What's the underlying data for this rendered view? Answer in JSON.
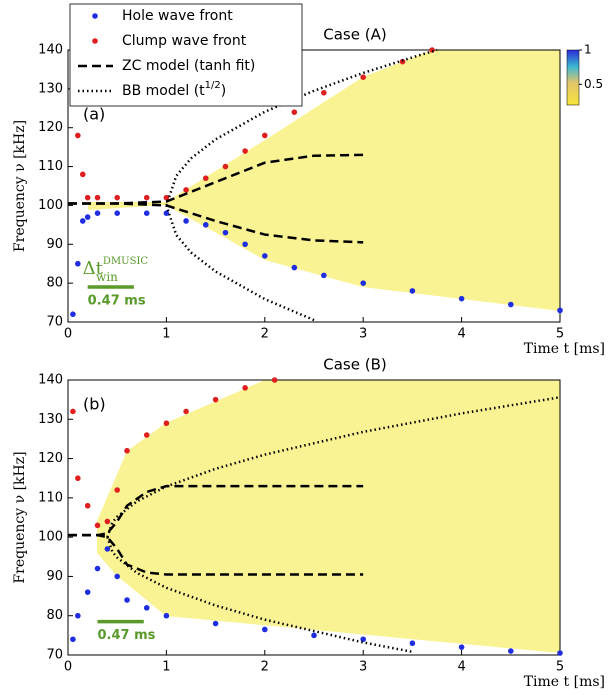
{
  "chart_data": [
    {
      "type": "scatter",
      "title": "Case (A)",
      "panel_label": "(a)",
      "x_label": "Time t [ms]",
      "y_label": "Frequency ν [kHz]",
      "xlim": [
        0,
        5
      ],
      "ylim": [
        70,
        140
      ],
      "xticks": [
        0,
        1,
        2,
        3,
        4,
        5
      ],
      "yticks": [
        70,
        80,
        90,
        100,
        110,
        120,
        130,
        140
      ],
      "colorbar": {
        "clim": [
          0.2,
          1
        ],
        "ticks": [
          0.5,
          1
        ]
      },
      "annotation": {
        "symbol": "Δt",
        "sup": "DMUSIC",
        "sub": "win",
        "label": "0.47 ms",
        "x": [
          0.2,
          0.67
        ],
        "y": 79,
        "color": "#5a9a2a"
      },
      "series": [
        {
          "name": "Hole wave front",
          "color": "#1f2ee0",
          "style": "points",
          "x": [
            0.05,
            0.1,
            0.15,
            0.2,
            0.3,
            0.5,
            0.8,
            1.0,
            1.2,
            1.4,
            1.6,
            1.8,
            2.0,
            2.3,
            2.6,
            3.0,
            3.5,
            4.0,
            4.5,
            5.0
          ],
          "values": [
            72,
            85,
            96,
            97,
            98,
            98,
            98,
            98,
            96,
            95,
            93,
            90,
            87,
            84,
            82,
            80,
            78,
            76,
            74.5,
            73
          ]
        },
        {
          "name": "Clump wave front",
          "color": "#e02020",
          "style": "points",
          "x": [
            0.05,
            0.1,
            0.15,
            0.2,
            0.3,
            0.5,
            0.8,
            1.0,
            1.2,
            1.4,
            1.6,
            1.8,
            2.0,
            2.3,
            2.6,
            3.0,
            3.4,
            3.7
          ],
          "values": [
            130,
            118,
            108,
            102,
            102,
            102,
            102,
            102,
            104,
            107,
            110,
            114,
            118,
            124,
            129,
            133,
            137,
            140
          ]
        },
        {
          "name": "ZC model (tanh fit)",
          "color": "#000000",
          "style": "dashed",
          "branches": [
            {
              "x": [
                0,
                0.5,
                1,
                1.5,
                2,
                2.5,
                3
              ],
              "values": [
                100.5,
                100.5,
                101,
                106,
                111,
                112.8,
                113
              ]
            },
            {
              "x": [
                0,
                0.5,
                1,
                1.5,
                2,
                2.5,
                3
              ],
              "values": [
                100.5,
                100.5,
                100,
                96,
                92.5,
                91,
                90.5
              ]
            }
          ]
        },
        {
          "name_parts": [
            "BB model (t",
            "1/2",
            ")"
          ],
          "color": "#000000",
          "style": "dotted",
          "branches": [
            {
              "x": [
                1,
                1.1,
                1.25,
                1.5,
                2,
                2.5,
                3,
                3.5,
                3.75
              ],
              "values": [
                100,
                107.6,
                112.1,
                117,
                124.1,
                129.5,
                134.1,
                138.1,
                140
              ]
            },
            {
              "x": [
                1,
                1.1,
                1.25,
                1.5,
                2,
                2.5
              ],
              "values": [
                100,
                92.4,
                87.9,
                83,
                75.9,
                70.5
              ]
            }
          ]
        }
      ]
    },
    {
      "type": "scatter",
      "title": "Case (B)",
      "panel_label": "(b)",
      "x_label": "Time t [ms]",
      "y_label": "Frequency ν [kHz]",
      "xlim": [
        0,
        5
      ],
      "ylim": [
        70,
        140
      ],
      "xticks": [
        0,
        1,
        2,
        3,
        4,
        5
      ],
      "yticks": [
        70,
        80,
        90,
        100,
        110,
        120,
        130,
        140
      ],
      "annotation": {
        "label": "0.47 ms",
        "x": [
          0.3,
          0.77
        ],
        "y": 78.5,
        "color": "#5a9a2a"
      },
      "series": [
        {
          "color": "#1f2ee0",
          "style": "points",
          "x": [
            0.05,
            0.1,
            0.2,
            0.3,
            0.4,
            0.5,
            0.6,
            0.8,
            1,
            1.5,
            2,
            2.5,
            3,
            3.5,
            4,
            4.5,
            5
          ],
          "values": [
            74,
            80,
            86,
            92,
            97,
            90,
            84,
            82,
            80,
            78,
            76.5,
            75,
            74,
            73,
            72,
            71,
            70.5
          ]
        },
        {
          "color": "#e02020",
          "style": "points",
          "x": [
            0.05,
            0.1,
            0.2,
            0.3,
            0.4,
            0.5,
            0.6,
            0.8,
            1,
            1.2,
            1.5,
            1.8,
            2.1
          ],
          "values": [
            132,
            115,
            108,
            103,
            104,
            112,
            122,
            126,
            129,
            132,
            135,
            138,
            140
          ]
        },
        {
          "color": "#000000",
          "style": "dashed",
          "branches": [
            {
              "x": [
                0,
                0.3,
                0.4,
                0.5,
                0.6,
                0.8,
                1,
                1.5,
                2,
                3
              ],
              "values": [
                100.5,
                100.5,
                101,
                104,
                108,
                111.5,
                113,
                113,
                113,
                113
              ]
            },
            {
              "x": [
                0,
                0.3,
                0.4,
                0.5,
                0.6,
                0.8,
                1,
                1.5,
                2,
                3
              ],
              "values": [
                100.5,
                100.5,
                100,
                97,
                93,
                91,
                90.5,
                90.5,
                90.5,
                90.5
              ]
            }
          ]
        },
        {
          "color": "#000000",
          "style": "dotted",
          "branches": [
            {
              "x": [
                0.4,
                0.45,
                0.5,
                0.7,
                1,
                1.5,
                2,
                3,
                4,
                5
              ],
              "values": [
                100,
                103.7,
                105.2,
                109.1,
                112.9,
                117.4,
                121,
                126.8,
                131.5,
                135.6
              ]
            },
            {
              "x": [
                0.4,
                0.45,
                0.5,
                0.7,
                1,
                1.5,
                2,
                3,
                3.5
              ],
              "values": [
                100,
                96.3,
                94.8,
                90.9,
                87.1,
                82.6,
                79,
                73.2,
                70.8
              ]
            }
          ]
        }
      ]
    }
  ]
}
